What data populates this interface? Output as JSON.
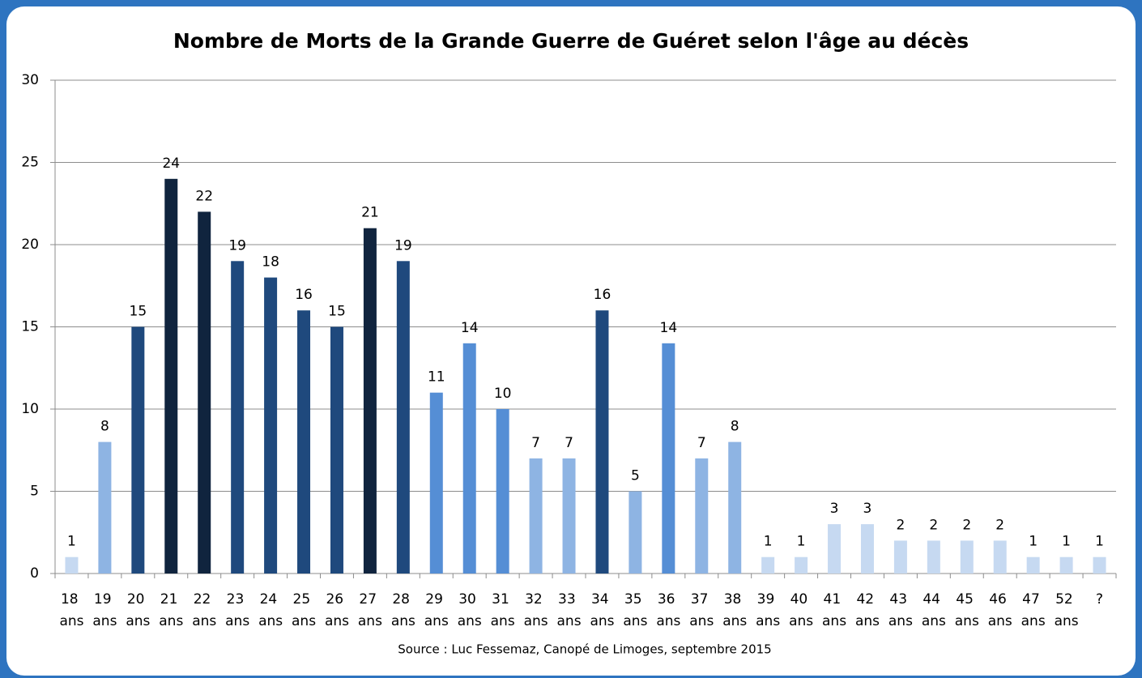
{
  "chart_data": {
    "type": "bar",
    "title": "Nombre de Morts de la Grande Guerre de Guéret selon l'âge au décès",
    "source": "Source : Luc Fessemaz, Canopé de Limoges, septembre 2015",
    "categories": [
      "18 ans",
      "19 ans",
      "20 ans",
      "21 ans",
      "22 ans",
      "23 ans",
      "24 ans",
      "25 ans",
      "26 ans",
      "27 ans",
      "28 ans",
      "29 ans",
      "30 ans",
      "31 ans",
      "32 ans",
      "33 ans",
      "34 ans",
      "35 ans",
      "36 ans",
      "37 ans",
      "38 ans",
      "39 ans",
      "40 ans",
      "41 ans",
      "42 ans",
      "43 ans",
      "44 ans",
      "45 ans",
      "46 ans",
      "47 ans",
      "52 ans",
      "?"
    ],
    "values": [
      1,
      8,
      15,
      24,
      22,
      19,
      18,
      16,
      15,
      21,
      19,
      11,
      14,
      10,
      7,
      7,
      16,
      5,
      14,
      7,
      8,
      1,
      1,
      3,
      3,
      2,
      2,
      2,
      2,
      1,
      1,
      1
    ],
    "colors": [
      "#c6d9f1",
      "#8eb4e3",
      "#1f497d",
      "#10243e",
      "#10243e",
      "#1f497d",
      "#1f497d",
      "#1f497d",
      "#1f497d",
      "#10243e",
      "#1f497d",
      "#558ed5",
      "#558ed5",
      "#558ed5",
      "#8eb4e3",
      "#8eb4e3",
      "#1f497d",
      "#8eb4e3",
      "#558ed5",
      "#8eb4e3",
      "#8eb4e3",
      "#c6d9f1",
      "#c6d9f1",
      "#c6d9f1",
      "#c6d9f1",
      "#c6d9f1",
      "#c6d9f1",
      "#c6d9f1",
      "#c6d9f1",
      "#c6d9f1",
      "#c6d9f1",
      "#c6d9f1"
    ],
    "ylim": [
      0,
      30
    ],
    "yticks": [
      0,
      5,
      10,
      15,
      20,
      25,
      30
    ],
    "grid": true
  }
}
